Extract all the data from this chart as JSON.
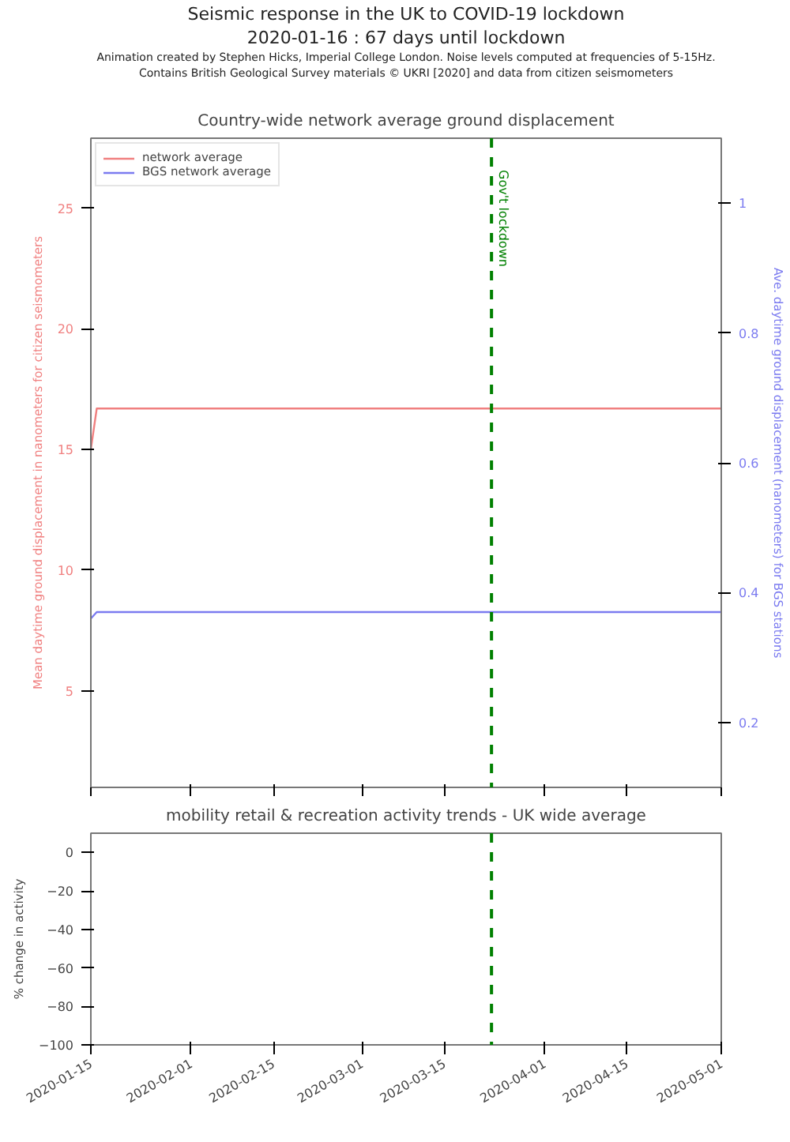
{
  "chart_data": [
    {
      "type": "other",
      "title": "Seismic response in the UK to COVID-19 lockdown",
      "subtitle": "2020-01-16 : 67 days until lockdown",
      "annotations": [
        "Animation created by Stephen Hicks, Imperial College London. Noise levels computed at frequencies of 5-15Hz.",
        "Contains British Geological Survey materials © UKRI [2020] and data from citizen seismometers"
      ]
    },
    {
      "type": "line",
      "title": "Country-wide network average ground displacement",
      "ylabel": "Mean daytime ground displacement in nanometers for citizen seismometers",
      "y2label": "Ave. daytime ground displacement (nanometers) for BGS stations",
      "xlim": [
        "2020-01-15",
        "2020-05-01"
      ],
      "xticks": [
        "2020-01-15",
        "2020-02-01",
        "2020-02-15",
        "2020-03-01",
        "2020-03-15",
        "2020-04-01",
        "2020-04-15",
        "2020-05-01"
      ],
      "ylim": [
        1.0,
        27.9
      ],
      "yticks": [
        5,
        10,
        15,
        20,
        25
      ],
      "y2lim": [
        0.1,
        1.1
      ],
      "y2ticks": [
        0.2,
        0.4,
        0.6,
        0.8,
        1.0
      ],
      "tick_labels": "y",
      "grid": false,
      "legend": "top left",
      "series": [
        {
          "name": "network average",
          "color": "#f08080",
          "x": [
            "2020-01-15",
            "2020-01-16",
            "2020-05-01"
          ],
          "values": [
            15.0,
            16.7,
            16.7
          ]
        },
        {
          "name": "BGS network average",
          "color": "#7b7bf0",
          "axis": "y2",
          "x": [
            "2020-01-15",
            "2020-01-16",
            "2020-05-01"
          ],
          "values": [
            0.36,
            0.37,
            0.37
          ]
        }
      ],
      "ref_lines": [
        {
          "axis": "x",
          "value": "2020-03-23",
          "label": "Gov't lockdown",
          "color": "#008000",
          "line_style": "dashed"
        }
      ]
    },
    {
      "type": "line",
      "title": "mobility retail & recreation activity trends - UK wide average",
      "ylabel": "% change in activity",
      "xlim": [
        "2020-01-15",
        "2020-05-01"
      ],
      "xticks": [
        "2020-01-15",
        "2020-02-01",
        "2020-02-15",
        "2020-03-01",
        "2020-03-15",
        "2020-04-01",
        "2020-04-15",
        "2020-05-01"
      ],
      "ylim": [
        -100,
        10
      ],
      "yticks": [
        0,
        -20,
        -40,
        -60,
        -80,
        -100
      ],
      "grid": false,
      "ref_lines": [
        {
          "axis": "x",
          "value": "2020-03-23",
          "color": "#008000",
          "line_style": "dashed"
        }
      ]
    }
  ]
}
